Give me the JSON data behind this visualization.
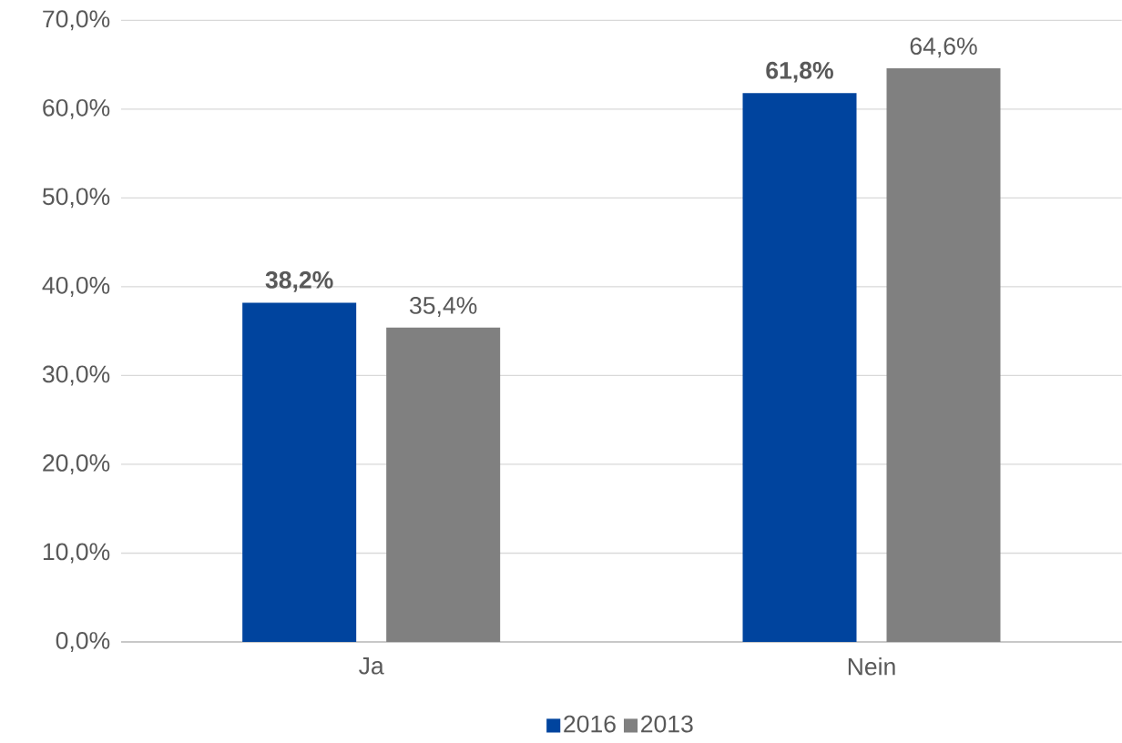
{
  "chart_data": {
    "type": "bar",
    "categories": [
      "Ja",
      "Nein"
    ],
    "series": [
      {
        "name": "2016",
        "color": "#00449e",
        "values": [
          38.2,
          61.8
        ],
        "value_labels": [
          "38,2%",
          "61,8%"
        ]
      },
      {
        "name": "2013",
        "color": "#808080",
        "values": [
          35.4,
          64.6
        ],
        "value_labels": [
          "35,4%",
          "64,6%"
        ]
      }
    ],
    "ylim": [
      0,
      70
    ],
    "yticks": [
      {
        "value": 0,
        "label": "0,0%"
      },
      {
        "value": 10,
        "label": "10,0%"
      },
      {
        "value": 20,
        "label": "20,0%"
      },
      {
        "value": 30,
        "label": "30,0%"
      },
      {
        "value": 40,
        "label": "40,0%"
      },
      {
        "value": 50,
        "label": "50,0%"
      },
      {
        "value": 60,
        "label": "60,0%"
      },
      {
        "value": 70,
        "label": "70,0%"
      }
    ],
    "grid": "y",
    "legend": "bottom"
  }
}
